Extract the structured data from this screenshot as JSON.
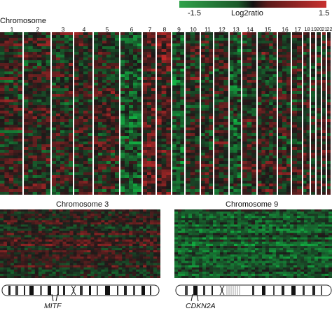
{
  "legend": {
    "min_label": "-1.5",
    "mid_label": "Log2ratio",
    "max_label": "1.5",
    "colors": {
      "low": "#2fa24a",
      "mid": "#111111",
      "high": "#c8302e"
    }
  },
  "chart_data": [
    {
      "type": "heatmap",
      "title": "",
      "xlabel": "Chromosome",
      "categories": [
        "1",
        "2",
        "3",
        "4",
        "5",
        "6",
        "7",
        "8",
        "9",
        "10",
        "11",
        "12",
        "13",
        "14",
        "15",
        "16",
        "17",
        "18",
        "19",
        "20",
        "21",
        "22"
      ],
      "value_range": [
        -1.5,
        1.5
      ]
    },
    {
      "type": "heatmap",
      "title": "Chromosome 3",
      "annotations": [
        "MITF"
      ],
      "value_range": [
        -1.5,
        1.5
      ]
    },
    {
      "type": "heatmap",
      "title": "Chromosome 9",
      "annotations": [
        "CDKN2A"
      ],
      "value_range": [
        -1.5,
        1.5
      ]
    }
  ]
}
